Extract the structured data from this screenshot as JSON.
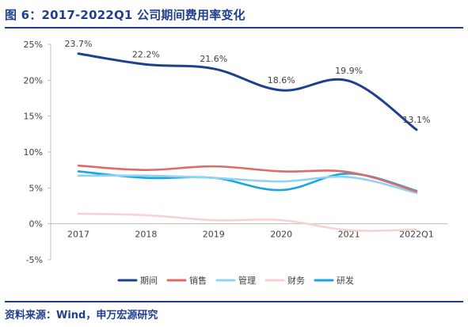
{
  "figure": {
    "title": "图 6：2017-2022Q1 公司期间费用率变化",
    "source": "资料来源：Wind，申万宏源研究"
  },
  "colors": {
    "title": "#1f3f8f",
    "期间": "#1f3f8f",
    "销售": "#e06a66",
    "管理": "#8fd3f2",
    "财务": "#f6d3d1",
    "研发": "#1aa6e0",
    "axis": "#bdbdbd",
    "tick_text": "#404040"
  },
  "chart_data": {
    "type": "line",
    "categories": [
      "2017",
      "2018",
      "2019",
      "2020",
      "2021",
      "2022Q1"
    ],
    "y_ticks": [
      "-5%",
      "0%",
      "5%",
      "10%",
      "15%",
      "20%",
      "25%"
    ],
    "ylim": [
      -5,
      25
    ],
    "unit": "%",
    "smooth": true,
    "grid": false,
    "legend_position": "bottom",
    "series": [
      {
        "name": "期间",
        "values": [
          23.7,
          22.2,
          21.6,
          18.6,
          19.9,
          13.1
        ],
        "labels": [
          "23.7%",
          "22.2%",
          "21.6%",
          "18.6%",
          "19.9%",
          "13.1%"
        ]
      },
      {
        "name": "销售",
        "values": [
          8.1,
          7.5,
          8.0,
          7.3,
          7.2,
          4.5
        ]
      },
      {
        "name": "管理",
        "values": [
          6.7,
          6.7,
          6.4,
          5.9,
          6.5,
          4.3
        ]
      },
      {
        "name": "财务",
        "values": [
          1.4,
          1.2,
          0.5,
          0.5,
          -0.9,
          -0.8
        ]
      },
      {
        "name": "研发",
        "values": [
          7.3,
          6.4,
          6.4,
          4.7,
          7.0,
          4.6
        ]
      }
    ]
  }
}
